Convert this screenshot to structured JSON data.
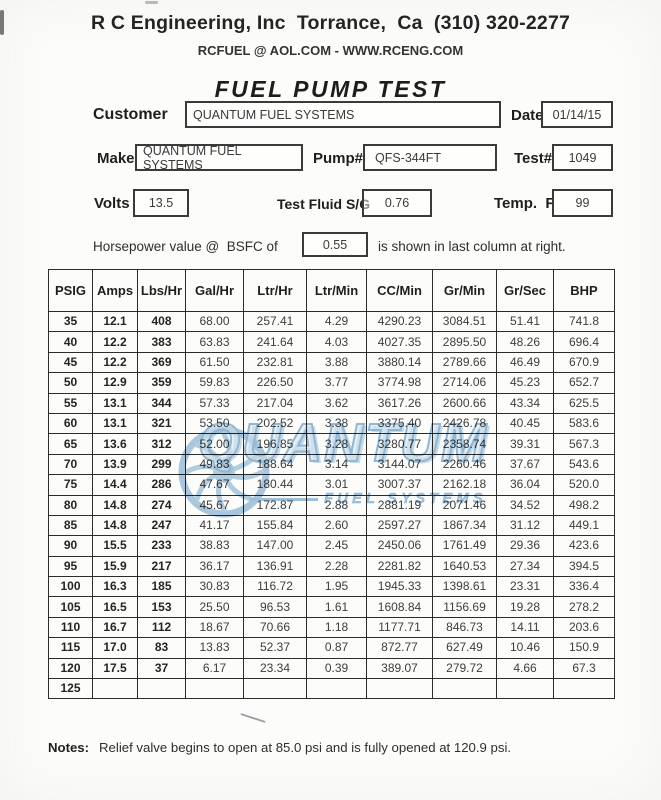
{
  "header": {
    "company_line": "R C Engineering, Inc  Torrance,  Ca  (310) 320-2277",
    "contact_line": "RCFUEL @ AOL.COM - WWW.RCENG.COM",
    "title": "FUEL PUMP TEST"
  },
  "form": {
    "customer": {
      "label": "Customer",
      "value": "QUANTUM FUEL SYSTEMS"
    },
    "date": {
      "label": "Date",
      "value": "01/14/15"
    },
    "make": {
      "label": "Make",
      "value": "QUANTUM FUEL SYSTEMS"
    },
    "pump": {
      "label": "Pump#",
      "value": "QFS-344FT"
    },
    "test": {
      "label": "Test#",
      "value": "1049"
    },
    "volts": {
      "label": "Volts",
      "value": "13.5"
    },
    "fluid": {
      "label": "Test Fluid S/G",
      "value": "0.76"
    },
    "temp": {
      "label": "Temp.  F",
      "value": "99"
    },
    "bsfc": {
      "prefix": "Horsepower value @  BSFC of",
      "value": "0.55",
      "suffix": "is shown in last column at right."
    }
  },
  "watermark": {
    "word": "QUANTUM",
    "subtext": "FUEL SYSTEMS",
    "color": "#8fb7d8"
  },
  "table": {
    "columns": [
      "PSIG",
      "Amps",
      "Lbs/Hr",
      "Gal/Hr",
      "Ltr/Hr",
      "Ltr/Min",
      "CC/Min",
      "Gr/Min",
      "Gr/Sec",
      "BHP"
    ],
    "rows": [
      [
        "35",
        "12.1",
        "408",
        "68.00",
        "257.41",
        "4.29",
        "4290.23",
        "3084.51",
        "51.41",
        "741.8"
      ],
      [
        "40",
        "12.2",
        "383",
        "63.83",
        "241.64",
        "4.03",
        "4027.35",
        "2895.50",
        "48.26",
        "696.4"
      ],
      [
        "45",
        "12.2",
        "369",
        "61.50",
        "232.81",
        "3.88",
        "3880.14",
        "2789.66",
        "46.49",
        "670.9"
      ],
      [
        "50",
        "12.9",
        "359",
        "59.83",
        "226.50",
        "3.77",
        "3774.98",
        "2714.06",
        "45.23",
        "652.7"
      ],
      [
        "55",
        "13.1",
        "344",
        "57.33",
        "217.04",
        "3.62",
        "3617.26",
        "2600.66",
        "43.34",
        "625.5"
      ],
      [
        "60",
        "13.1",
        "321",
        "53.50",
        "202.52",
        "3.38",
        "3375.40",
        "2426.78",
        "40.45",
        "583.6"
      ],
      [
        "65",
        "13.6",
        "312",
        "52.00",
        "196.85",
        "3.28",
        "3280.77",
        "2358.74",
        "39.31",
        "567.3"
      ],
      [
        "70",
        "13.9",
        "299",
        "49.83",
        "188.64",
        "3.14",
        "3144.07",
        "2260.46",
        "37.67",
        "543.6"
      ],
      [
        "75",
        "14.4",
        "286",
        "47.67",
        "180.44",
        "3.01",
        "3007.37",
        "2162.18",
        "36.04",
        "520.0"
      ],
      [
        "80",
        "14.8",
        "274",
        "45.67",
        "172.87",
        "2.88",
        "2881.19",
        "2071.46",
        "34.52",
        "498.2"
      ],
      [
        "85",
        "14.8",
        "247",
        "41.17",
        "155.84",
        "2.60",
        "2597.27",
        "1867.34",
        "31.12",
        "449.1"
      ],
      [
        "90",
        "15.5",
        "233",
        "38.83",
        "147.00",
        "2.45",
        "2450.06",
        "1761.49",
        "29.36",
        "423.6"
      ],
      [
        "95",
        "15.9",
        "217",
        "36.17",
        "136.91",
        "2.28",
        "2281.82",
        "1640.53",
        "27.34",
        "394.5"
      ],
      [
        "100",
        "16.3",
        "185",
        "30.83",
        "116.72",
        "1.95",
        "1945.33",
        "1398.61",
        "23.31",
        "336.4"
      ],
      [
        "105",
        "16.5",
        "153",
        "25.50",
        "96.53",
        "1.61",
        "1608.84",
        "1156.69",
        "19.28",
        "278.2"
      ],
      [
        "110",
        "16.7",
        "112",
        "18.67",
        "70.66",
        "1.18",
        "1177.71",
        "846.73",
        "14.11",
        "203.6"
      ],
      [
        "115",
        "17.0",
        "83",
        "13.83",
        "52.37",
        "0.87",
        "872.77",
        "627.49",
        "10.46",
        "150.9"
      ],
      [
        "120",
        "17.5",
        "37",
        "6.17",
        "23.34",
        "0.39",
        "389.07",
        "279.72",
        "4.66",
        "67.3"
      ],
      [
        "125",
        "",
        "",
        "",
        "",
        "",
        "",
        "",
        "",
        ""
      ]
    ]
  },
  "notes": {
    "label": "Notes:",
    "text": "Relief valve begins to open at 85.0 psi and is fully opened at 120.9 psi."
  }
}
